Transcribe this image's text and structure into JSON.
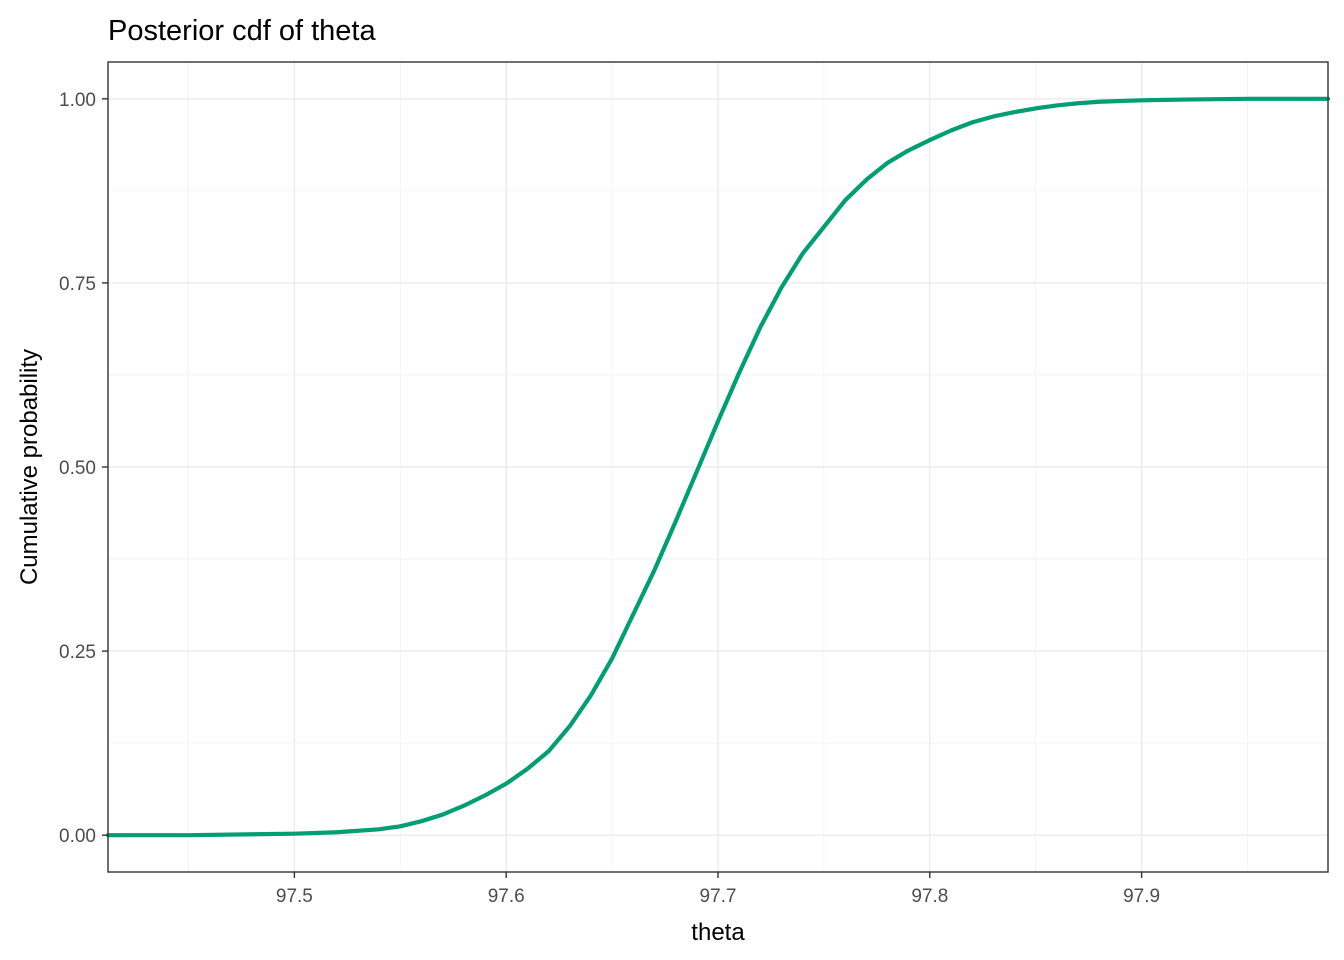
{
  "chart_data": {
    "type": "line",
    "title": "Posterior cdf of theta",
    "xlabel": "theta",
    "ylabel": "Cumulative probability",
    "xlim": [
      97.412,
      97.988
    ],
    "ylim": [
      -0.05,
      1.05
    ],
    "xticks": [
      97.5,
      97.6,
      97.7,
      97.8,
      97.9
    ],
    "xtick_labels": [
      "97.5",
      "97.6",
      "97.7",
      "97.8",
      "97.9"
    ],
    "yticks": [
      0.0,
      0.25,
      0.5,
      0.75,
      1.0
    ],
    "ytick_labels": [
      "0.00",
      "0.25",
      "0.50",
      "0.75",
      "1.00"
    ],
    "grid": true,
    "line_color": "#009E73",
    "series": [
      {
        "x": [
          97.412,
          97.45,
          97.5,
          97.52,
          97.54,
          97.55,
          97.56,
          97.57,
          97.58,
          97.59,
          97.6,
          97.61,
          97.62,
          97.63,
          97.64,
          97.65,
          97.66,
          97.67,
          97.68,
          97.69,
          97.7,
          97.71,
          97.72,
          97.73,
          97.74,
          97.75,
          97.76,
          97.77,
          97.78,
          97.79,
          97.8,
          97.81,
          97.82,
          97.83,
          97.84,
          97.85,
          97.86,
          97.87,
          97.88,
          97.9,
          97.92,
          97.95,
          97.988
        ],
        "y": [
          0.0,
          0.0,
          0.002,
          0.004,
          0.008,
          0.012,
          0.019,
          0.028,
          0.04,
          0.054,
          0.07,
          0.09,
          0.114,
          0.148,
          0.19,
          0.24,
          0.3,
          0.36,
          0.426,
          0.494,
          0.562,
          0.628,
          0.69,
          0.744,
          0.79,
          0.826,
          0.862,
          0.89,
          0.913,
          0.93,
          0.944,
          0.957,
          0.968,
          0.976,
          0.982,
          0.987,
          0.991,
          0.994,
          0.996,
          0.998,
          0.999,
          1.0,
          1.0
        ]
      }
    ]
  }
}
